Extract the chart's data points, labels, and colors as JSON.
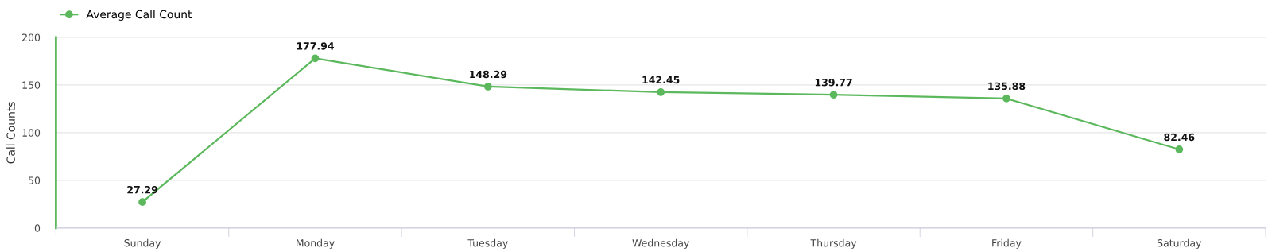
{
  "chart_data": {
    "type": "line",
    "ylabel": "Call Counts",
    "categories": [
      "Sunday",
      "Monday",
      "Tuesday",
      "Wednesday",
      "Thursday",
      "Friday",
      "Saturday"
    ],
    "series": [
      {
        "name": "Average Call Count",
        "color": "#5cb85c",
        "values": [
          27.29,
          177.94,
          148.29,
          142.45,
          139.77,
          135.88,
          82.46
        ]
      }
    ],
    "ylim": [
      0,
      200
    ],
    "yticks": [
      0,
      50,
      100,
      150,
      200
    ],
    "grid": "y",
    "legend": "top left",
    "marker": "circle",
    "line_style": "solid",
    "data_labels": true
  }
}
